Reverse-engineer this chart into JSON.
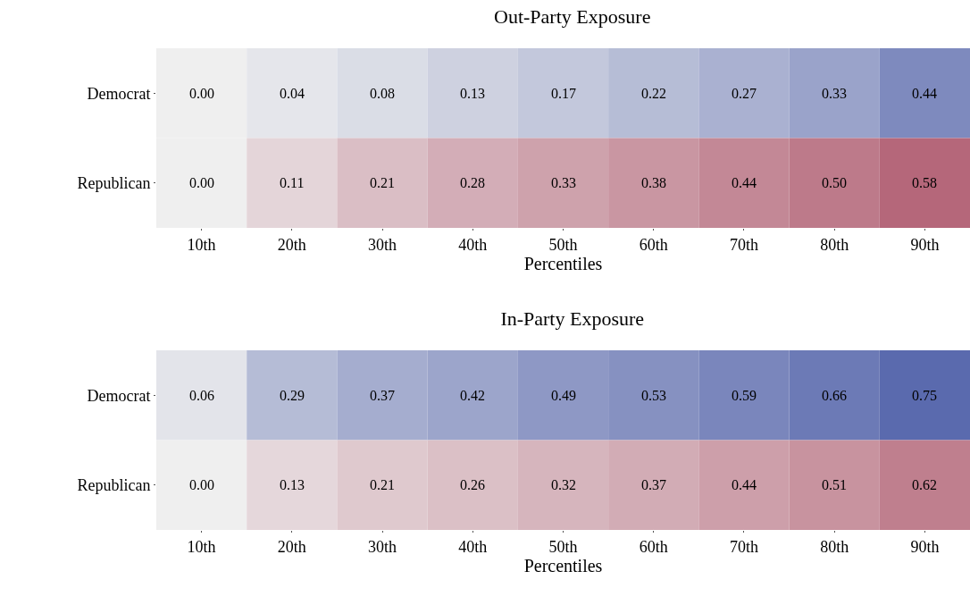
{
  "chart_data": [
    {
      "type": "heatmap",
      "title": "Out-Party Exposure",
      "xlabel": "Percentiles",
      "categories": [
        "10th",
        "20th",
        "30th",
        "40th",
        "50th",
        "60th",
        "70th",
        "80th",
        "90th"
      ],
      "y_categories": [
        "Democrat",
        "Republican"
      ],
      "colors": [
        "#5a6aae",
        "#b5677a"
      ],
      "cells": [
        [
          0.0,
          0.04,
          0.08,
          0.13,
          0.17,
          0.22,
          0.27,
          0.33,
          0.44
        ],
        [
          0.0,
          0.11,
          0.21,
          0.28,
          0.33,
          0.38,
          0.44,
          0.5,
          0.58
        ]
      ],
      "cell_labels": [
        [
          "0.00",
          "0.04",
          "0.08",
          "0.13",
          "0.17",
          "0.22",
          "0.27",
          "0.33",
          "0.44"
        ],
        [
          "0.00",
          "0.11",
          "0.21",
          "0.28",
          "0.33",
          "0.38",
          "0.44",
          "0.50",
          "0.58"
        ]
      ]
    },
    {
      "type": "heatmap",
      "title": "In-Party Exposure",
      "xlabel": "Percentiles",
      "categories": [
        "10th",
        "20th",
        "30th",
        "40th",
        "50th",
        "60th",
        "70th",
        "80th",
        "90th"
      ],
      "y_categories": [
        "Democrat",
        "Republican"
      ],
      "colors": [
        "#5a6aae",
        "#b5677a"
      ],
      "cells": [
        [
          0.06,
          0.29,
          0.37,
          0.42,
          0.49,
          0.53,
          0.59,
          0.66,
          0.75
        ],
        [
          0.0,
          0.13,
          0.21,
          0.26,
          0.32,
          0.37,
          0.44,
          0.51,
          0.62
        ]
      ],
      "cell_labels": [
        [
          "0.06",
          "0.29",
          "0.37",
          "0.42",
          "0.49",
          "0.53",
          "0.59",
          "0.66",
          "0.75"
        ],
        [
          "0.00",
          "0.13",
          "0.21",
          "0.26",
          "0.32",
          "0.37",
          "0.44",
          "0.51",
          "0.62"
        ]
      ]
    }
  ]
}
